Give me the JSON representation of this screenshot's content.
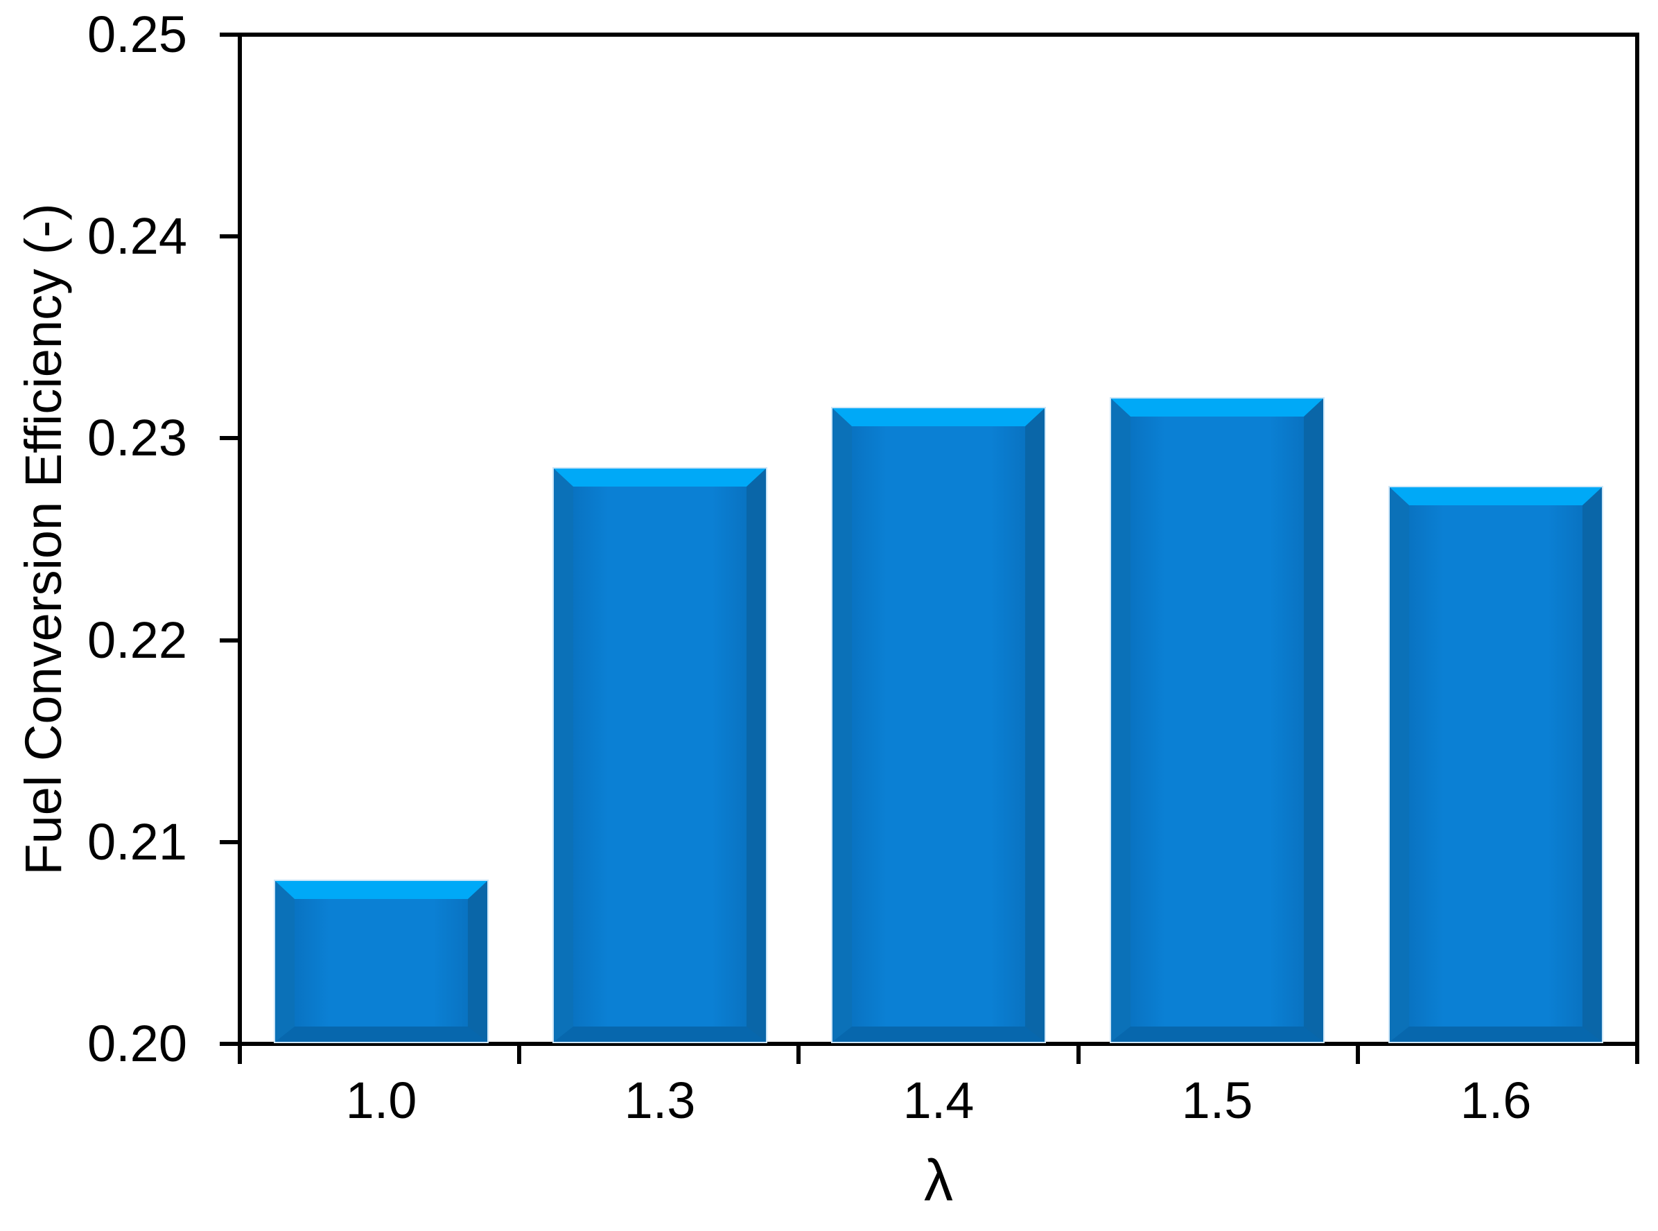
{
  "chart_data": {
    "type": "bar",
    "xlabel": "λ",
    "ylabel": "Fuel Conversion Efficiency (-)",
    "categories": [
      "1.0",
      "1.3",
      "1.4",
      "1.5",
      "1.6"
    ],
    "values": [
      0.208,
      0.2285,
      0.2315,
      0.232,
      0.2276
    ],
    "ylim": [
      0.2,
      0.25
    ],
    "ytick_labels": [
      "0.20",
      "0.21",
      "0.22",
      "0.23",
      "0.24",
      "0.25"
    ],
    "grid": false,
    "legend": "none",
    "colors": {
      "bar_fill": "#0b80d4",
      "bar_fill_edge": "#0973c2",
      "bevel_top": "#00a9f7",
      "bevel_left": "#0b71b8",
      "bevel_right": "#0a66a8",
      "bevel_bottom": "#0767ad",
      "bar_outline": "#cde6f8",
      "axis": "#000000",
      "background": "#ffffff",
      "text": "#000000"
    }
  }
}
